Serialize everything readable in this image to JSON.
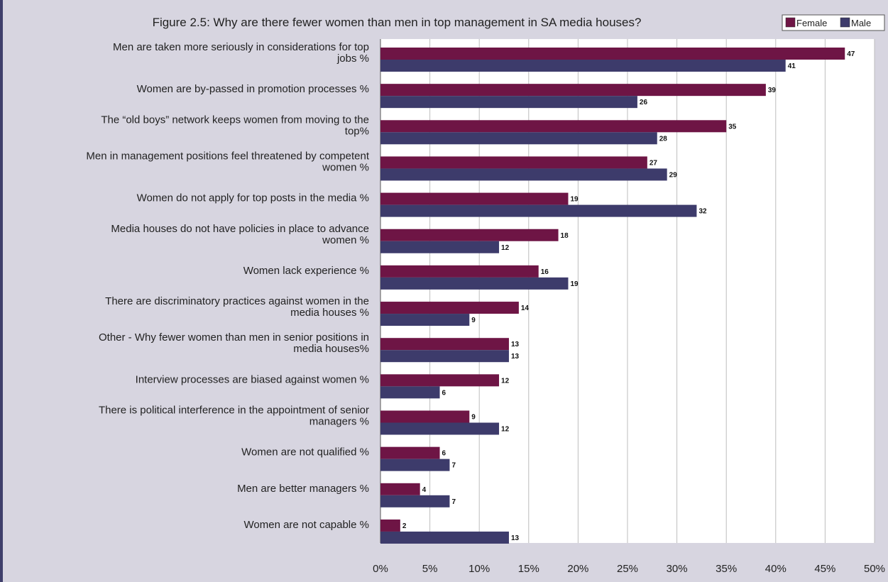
{
  "chart_data": {
    "type": "bar",
    "orientation": "horizontal",
    "title": "Figure 2.5: Why are there fewer women than men in top management in SA media houses?",
    "categories": [
      [
        "Men are taken more seriously in considerations for top",
        "jobs %"
      ],
      [
        "Women are by-passed in promotion processes %"
      ],
      [
        "The “old boys” network keeps women from moving to the",
        "top%"
      ],
      [
        "Men in management positions feel threatened by competent",
        "women %"
      ],
      [
        "Women do not apply for top posts in the media %"
      ],
      [
        "Media houses do not have policies in place to advance",
        "women %"
      ],
      [
        "Women lack experience %"
      ],
      [
        "There are discriminatory practices against women in the",
        "media houses %"
      ],
      [
        "Other - Why fewer women than men in senior positions in",
        "media houses%"
      ],
      [
        "Interview processes are biased against women %"
      ],
      [
        "There is political interference in the appointment of senior",
        "managers %"
      ],
      [
        "Women are not qualified %"
      ],
      [
        "Men are better managers %"
      ],
      [
        "Women are not capable %"
      ]
    ],
    "series": [
      {
        "name": "Female",
        "color": "#6e1545",
        "values": [
          47,
          39,
          35,
          27,
          19,
          18,
          16,
          14,
          13,
          12,
          9,
          6,
          4,
          2
        ]
      },
      {
        "name": "Male",
        "color": "#3d3b6b",
        "values": [
          41,
          26,
          28,
          29,
          32,
          12,
          19,
          9,
          13,
          6,
          12,
          7,
          7,
          13
        ]
      }
    ],
    "xlim": [
      0,
      50
    ],
    "xticks": [
      "0%",
      "5%",
      "10%",
      "15%",
      "20%",
      "25%",
      "30%",
      "35%",
      "40%",
      "45%",
      "50%"
    ],
    "grid": true,
    "legend_position": "top-right"
  }
}
